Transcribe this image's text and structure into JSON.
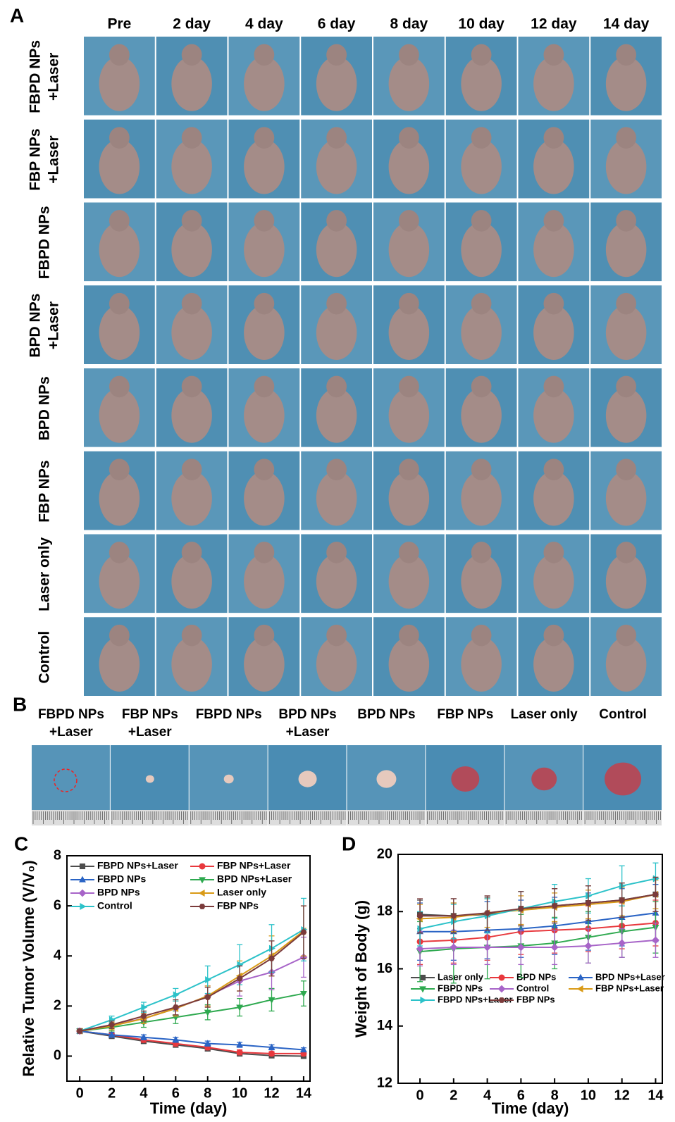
{
  "panel_a": {
    "label": "A",
    "columns": [
      "Pre",
      "2 day",
      "4 day",
      "6 day",
      "8 day",
      "10 day",
      "12 day",
      "14 day"
    ],
    "rows": [
      [
        "FBPD NPs",
        "+Laser"
      ],
      [
        "FBP NPs",
        "+Laser"
      ],
      [
        "FBPD NPs"
      ],
      [
        "BPD NPs",
        "+Laser"
      ],
      [
        "BPD NPs"
      ],
      [
        "FBP NPs"
      ],
      [
        "Laser only"
      ],
      [
        "Control"
      ]
    ]
  },
  "panel_b": {
    "label": "B",
    "groups": [
      [
        "FBPD NPs",
        "+Laser"
      ],
      [
        "FBP NPs",
        "+Laser"
      ],
      [
        "FBPD NPs"
      ],
      [
        "BPD NPs",
        "+Laser"
      ],
      [
        "BPD NPs"
      ],
      [
        "FBP NPs"
      ],
      [
        "Laser only"
      ],
      [
        "Control"
      ]
    ]
  },
  "chart_data": [
    {
      "type": "line",
      "panel": "C",
      "x_label": "Time (day)",
      "y_label": "Relative Tumor Volume (V/V₀)",
      "x": [
        0,
        2,
        4,
        6,
        8,
        10,
        12,
        14
      ],
      "xlim": [
        -0.8,
        14.4
      ],
      "xticks": [
        0,
        2,
        4,
        6,
        8,
        10,
        12,
        14
      ],
      "ylim": [
        -1,
        8
      ],
      "yticks": [
        0,
        2,
        4,
        6,
        8
      ],
      "legend": "upper left",
      "series": [
        {
          "name": "FBPD NPs+Laser",
          "color": "#4d4d4d",
          "marker": "square",
          "values": [
            1,
            0.8,
            0.6,
            0.45,
            0.3,
            0.1,
            0.02,
            0
          ],
          "errors": [
            0.08,
            0.1,
            0.1,
            0.1,
            0.1,
            0.1,
            0.05,
            0.05
          ]
        },
        {
          "name": "FBP NPs+Laser",
          "color": "#e8383d",
          "marker": "circle",
          "values": [
            1,
            0.85,
            0.65,
            0.5,
            0.35,
            0.15,
            0.1,
            0.1
          ],
          "errors": [
            0.08,
            0.1,
            0.1,
            0.1,
            0.1,
            0.1,
            0.08,
            0.08
          ]
        },
        {
          "name": "FBPD NPs",
          "color": "#2a64c5",
          "marker": "triangle-up",
          "values": [
            1,
            0.85,
            0.75,
            0.65,
            0.5,
            0.45,
            0.35,
            0.25
          ],
          "errors": [
            0.08,
            0.1,
            0.1,
            0.1,
            0.1,
            0.1,
            0.1,
            0.08
          ]
        },
        {
          "name": "BPD NPs+Laser",
          "color": "#2ea94f",
          "marker": "triangle-down",
          "values": [
            1,
            1.15,
            1.35,
            1.55,
            1.75,
            1.95,
            2.25,
            2.5
          ],
          "errors": [
            0.08,
            0.15,
            0.2,
            0.25,
            0.3,
            0.35,
            0.45,
            0.5
          ]
        },
        {
          "name": "BPD NPs",
          "color": "#a764c8",
          "marker": "diamond",
          "values": [
            1,
            1.25,
            1.5,
            1.9,
            2.4,
            3,
            3.35,
            3.95
          ],
          "errors": [
            0.08,
            0.15,
            0.2,
            0.3,
            0.4,
            0.6,
            0.7,
            0.8
          ]
        },
        {
          "name": "Laser only",
          "color": "#d99a16",
          "marker": "triangle-left",
          "values": [
            1,
            1.2,
            1.5,
            1.9,
            2.4,
            3.2,
            4,
            5
          ],
          "errors": [
            0.08,
            0.15,
            0.2,
            0.3,
            0.4,
            0.6,
            0.8,
            1
          ]
        },
        {
          "name": "Control",
          "color": "#2cc2c9",
          "marker": "triangle-right",
          "values": [
            1,
            1.45,
            1.95,
            2.45,
            3.05,
            3.65,
            4.3,
            5.05
          ],
          "errors": [
            0.08,
            0.15,
            0.2,
            0.25,
            0.55,
            0.8,
            0.95,
            1.25
          ]
        },
        {
          "name": "FBP NPs",
          "color": "#7b3b3b",
          "marker": "hexagon",
          "values": [
            1,
            1.25,
            1.6,
            1.95,
            2.35,
            3.1,
            3.9,
            4.95
          ],
          "errors": [
            0.08,
            0.15,
            0.2,
            0.3,
            0.4,
            0.5,
            0.7,
            1.05
          ]
        }
      ]
    },
    {
      "type": "line",
      "panel": "D",
      "x_label": "Time (day)",
      "y_label": "Weight of Body (g)",
      "x": [
        0,
        2,
        4,
        6,
        8,
        10,
        12,
        14
      ],
      "xlim": [
        -1.3,
        14.4
      ],
      "xticks": [
        0,
        2,
        4,
        6,
        8,
        10,
        12,
        14
      ],
      "ylim": [
        12,
        20
      ],
      "yticks": [
        12,
        14,
        16,
        18,
        20
      ],
      "legend": "center left",
      "series": [
        {
          "name": "Laser only",
          "color": "#4d4d4d",
          "marker": "square",
          "values": [
            17.9,
            17.85,
            17.9,
            18.1,
            18.2,
            18.3,
            18.4,
            18.6
          ],
          "errors": [
            0.5,
            0.6,
            0.6,
            0.6,
            0.6,
            0.6,
            0.6,
            0.6
          ]
        },
        {
          "name": "BPD NPs",
          "color": "#e8383d",
          "marker": "circle",
          "values": [
            16.95,
            17,
            17.1,
            17.3,
            17.35,
            17.4,
            17.5,
            17.6
          ],
          "errors": [
            0.8,
            0.8,
            0.8,
            0.8,
            0.8,
            0.8,
            0.8,
            0.8
          ]
        },
        {
          "name": "BPD NPs+Laser",
          "color": "#2a64c5",
          "marker": "triangle-up",
          "values": [
            17.3,
            17.3,
            17.35,
            17.4,
            17.5,
            17.65,
            17.8,
            17.95
          ],
          "errors": [
            1,
            1,
            1,
            1,
            1,
            1,
            1,
            1
          ]
        },
        {
          "name": "FBPD NPs",
          "color": "#2ea94f",
          "marker": "triangle-down",
          "values": [
            16.6,
            16.7,
            16.75,
            16.8,
            16.9,
            17.1,
            17.3,
            17.45
          ],
          "errors": [
            1.05,
            1.2,
            1.1,
            1.1,
            0.9,
            0.9,
            0.9,
            0.9
          ]
        },
        {
          "name": "Control",
          "color": "#a764c8",
          "marker": "diamond",
          "values": [
            16.7,
            16.75,
            16.75,
            16.75,
            16.75,
            16.8,
            16.9,
            17
          ],
          "errors": [
            0.6,
            0.6,
            0.6,
            0.6,
            0.6,
            0.6,
            0.5,
            0.6
          ]
        },
        {
          "name": "FBP NPs+Laser",
          "color": "#d99a16",
          "marker": "triangle-left",
          "values": [
            17.75,
            17.8,
            17.95,
            18.05,
            18.15,
            18.25,
            18.35,
            18.6
          ],
          "errors": [
            0.5,
            0.5,
            0.5,
            0.5,
            0.5,
            0.5,
            0.5,
            0.5
          ]
        },
        {
          "name": "FBPD NPs+Laser",
          "color": "#2cc2c9",
          "marker": "triangle-right",
          "values": [
            17.4,
            17.65,
            17.85,
            18.1,
            18.35,
            18.55,
            18.9,
            19.15
          ],
          "errors": [
            0.6,
            0.6,
            0.6,
            0.6,
            0.6,
            0.6,
            0.7,
            0.55
          ]
        },
        {
          "name": "FBP NPs",
          "color": "#7b3b3b",
          "marker": "hexagon",
          "values": [
            17.85,
            17.85,
            17.95,
            18.1,
            18.2,
            18.3,
            18.4,
            18.6
          ],
          "errors": [
            0.6,
            0.6,
            0.6,
            0.6,
            0.6,
            0.6,
            0.6,
            0.6
          ]
        }
      ]
    }
  ]
}
